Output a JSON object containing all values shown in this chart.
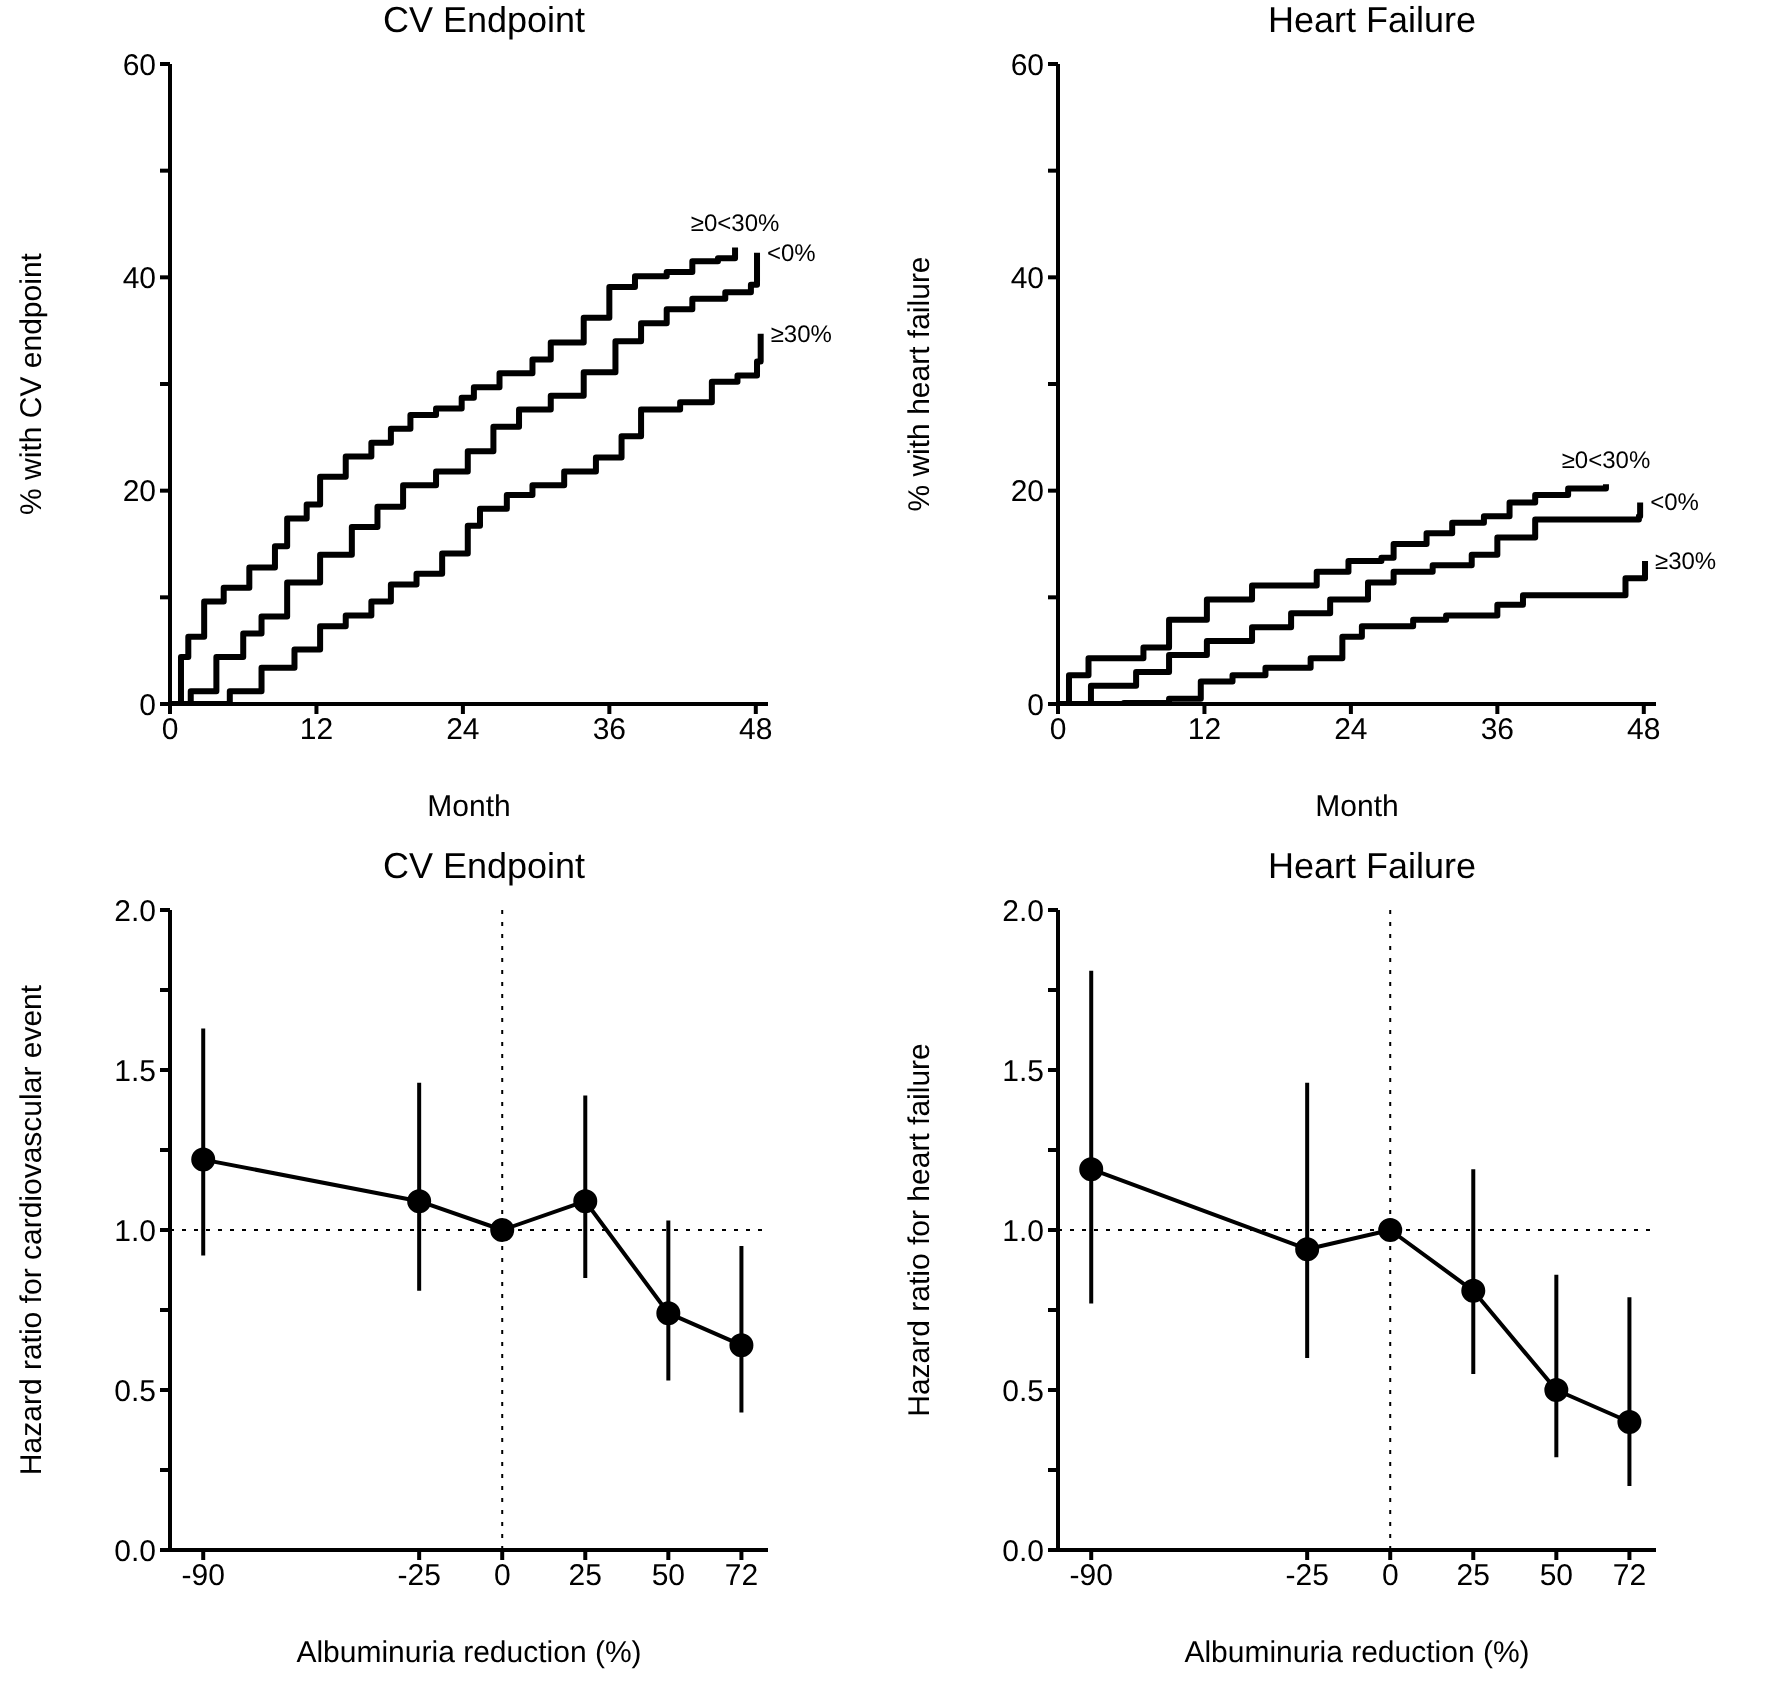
{
  "chart_data": [
    {
      "type": "step",
      "title": "CV Endpoint",
      "xlabel": "Month",
      "ylabel": "% with CV endpoint",
      "xlim": [
        0,
        49
      ],
      "xticks": [
        0,
        12,
        24,
        36,
        48
      ],
      "ylim": [
        0,
        60
      ],
      "yticks": [
        0,
        {
          "value": 10,
          "label": null
        },
        20,
        {
          "value": 30,
          "label": null
        },
        40,
        {
          "value": 50,
          "label": null
        },
        60
      ],
      "marker": "none",
      "line_style": "solid",
      "series": [
        {
          "name": "≥0<30%",
          "color": "#000000",
          "x": [
            0,
            0.9,
            1.5,
            2.8,
            4.4,
            6.5,
            8.6,
            9.6,
            11.2,
            12.3,
            14.4,
            16.5,
            18.1,
            19.7,
            21.8,
            23.9,
            24.9,
            27,
            29.7,
            31.2,
            33.9,
            36,
            38.1,
            40.7,
            42.8,
            44.9,
            46.3
          ],
          "values": [
            0,
            4.4,
            6.3,
            9.6,
            10.9,
            12.8,
            14.8,
            17.4,
            18.7,
            21.3,
            23.2,
            24.5,
            25.8,
            27.1,
            27.7,
            28.7,
            29.7,
            31,
            32.3,
            33.9,
            36.2,
            39.1,
            40.1,
            40.5,
            41.5,
            41.8,
            42.8
          ]
        },
        {
          "name": "<0%",
          "color": "#000000",
          "x": [
            0,
            1.7,
            3.8,
            6,
            7.5,
            9.6,
            12.3,
            14.9,
            17,
            19.1,
            21.8,
            24.4,
            26.5,
            28.6,
            31.2,
            33.9,
            36.5,
            38.6,
            40.7,
            42.8,
            45.5,
            47.6,
            48.1
          ],
          "values": [
            0,
            1.2,
            4.4,
            6.6,
            8.2,
            11.4,
            14,
            16.6,
            18.5,
            20.5,
            21.8,
            23.7,
            26,
            27.6,
            28.9,
            31.1,
            34,
            35.7,
            37,
            38,
            38.6,
            39.3,
            42.3
          ]
        },
        {
          "name": "≥30%",
          "color": "#000000",
          "x": [
            0,
            3.3,
            4.9,
            7.5,
            10.2,
            12.3,
            14.4,
            16.5,
            18.1,
            20.2,
            22.3,
            24.4,
            25.4,
            27.6,
            29.7,
            32.3,
            34.9,
            37,
            38.6,
            41.8,
            44.4,
            46.5,
            48.1,
            48.4
          ],
          "values": [
            0,
            0,
            1.2,
            3.4,
            5.1,
            7.3,
            8.3,
            9.6,
            11.2,
            12.2,
            14.1,
            16.7,
            18.3,
            19.6,
            20.5,
            21.8,
            23.1,
            25.1,
            27.6,
            28.3,
            30.2,
            30.8,
            32.1,
            34.7
          ]
        }
      ]
    },
    {
      "type": "step",
      "title": "Heart Failure",
      "xlabel": "Month",
      "ylabel": "% with heart failure",
      "xlim": [
        0,
        49
      ],
      "xticks": [
        0,
        12,
        24,
        36,
        48
      ],
      "ylim": [
        0,
        60
      ],
      "yticks": [
        0,
        {
          "value": 10,
          "label": null
        },
        20,
        {
          "value": 30,
          "label": null
        },
        40,
        {
          "value": 50,
          "label": null
        },
        60
      ],
      "marker": "none",
      "line_style": "solid",
      "series": [
        {
          "name": "≥0<30%",
          "color": "#000000",
          "x": [
            0,
            0.9,
            2.5,
            4.9,
            7,
            9.1,
            12.2,
            15.9,
            21.2,
            23.8,
            26.5,
            27.5,
            30.2,
            32.3,
            34.9,
            37,
            39.1,
            41.8,
            44.9
          ],
          "values": [
            0,
            2.7,
            4.3,
            4.3,
            5.3,
            7.9,
            9.8,
            11.1,
            12.4,
            13.4,
            13.7,
            15,
            16,
            17,
            17.6,
            18.9,
            19.6,
            20.2,
            20.6
          ]
        },
        {
          "name": "<0%",
          "color": "#000000",
          "x": [
            0,
            2.7,
            6.4,
            9.1,
            12.2,
            15.9,
            19.1,
            22.3,
            25.4,
            27.5,
            30.7,
            33.9,
            36,
            39.1,
            42.3,
            45.5,
            47.6,
            47.7
          ],
          "values": [
            0,
            1.7,
            3,
            4.6,
            5.9,
            7.2,
            8.5,
            9.8,
            11.4,
            12.4,
            13,
            14,
            15.6,
            17.3,
            17.3,
            17.3,
            17.6,
            18.9
          ]
        },
        {
          "name": "≥30%",
          "color": "#000000",
          "x": [
            0,
            5.4,
            9.1,
            11.7,
            14.3,
            17,
            20.7,
            23.3,
            24.9,
            29.1,
            31.8,
            36,
            38.1,
            45.5,
            46.5,
            48.1
          ],
          "values": [
            0,
            0.1,
            0.5,
            2.1,
            2.7,
            3.4,
            4.3,
            6.3,
            7.3,
            7.9,
            8.3,
            9.3,
            10.2,
            10.2,
            11.8,
            13.4
          ]
        }
      ]
    },
    {
      "type": "line",
      "title": "CV Endpoint",
      "xlabel": "Albuminuria reduction (%)",
      "ylabel": "Hazard ratio for cardiovascular event",
      "xlim": [
        -100,
        80
      ],
      "xticks": [
        -90,
        -25,
        0,
        25,
        50,
        72
      ],
      "ylim": [
        0,
        2
      ],
      "yticks": [
        {
          "value": 0,
          "label": "0.0"
        },
        {
          "value": 0.25,
          "label": null
        },
        0.5,
        {
          "value": 0.75,
          "label": null
        },
        {
          "value": 1,
          "label": "1.0"
        },
        {
          "value": 1.25,
          "label": null
        },
        1.5,
        {
          "value": 1.75,
          "label": null
        },
        {
          "value": 2,
          "label": "2.0"
        }
      ],
      "marker": "circle",
      "line_style": "solid",
      "color": "#000000",
      "x": [
        -90,
        -25,
        0,
        25,
        50,
        72
      ],
      "values": [
        1.22,
        1.09,
        1.0,
        1.09,
        0.74,
        0.64
      ],
      "errors": [
        [
          0.92,
          1.63
        ],
        [
          0.81,
          1.46
        ],
        null,
        [
          0.85,
          1.42
        ],
        [
          0.53,
          1.03
        ],
        [
          0.43,
          0.95
        ]
      ],
      "ref_lines": [
        {
          "axis": "x",
          "value": 0,
          "line_style": "dotted",
          "color": "#000000"
        },
        {
          "axis": "y",
          "value": 1,
          "line_style": "dotted",
          "color": "#000000"
        }
      ]
    },
    {
      "type": "line",
      "title": "Heart Failure",
      "xlabel": "Albuminuria reduction (%)",
      "ylabel": "Hazard ratio for heart failure",
      "xlim": [
        -100,
        80
      ],
      "xticks": [
        -90,
        -25,
        0,
        25,
        50,
        72
      ],
      "ylim": [
        0,
        2
      ],
      "yticks": [
        {
          "value": 0,
          "label": "0.0"
        },
        {
          "value": 0.25,
          "label": null
        },
        0.5,
        {
          "value": 0.75,
          "label": null
        },
        {
          "value": 1,
          "label": "1.0"
        },
        {
          "value": 1.25,
          "label": null
        },
        1.5,
        {
          "value": 1.75,
          "label": null
        },
        {
          "value": 2,
          "label": "2.0"
        }
      ],
      "marker": "circle",
      "line_style": "solid",
      "color": "#000000",
      "x": [
        -90,
        -25,
        0,
        25,
        50,
        72
      ],
      "values": [
        1.19,
        0.94,
        1.0,
        0.81,
        0.5,
        0.4
      ],
      "errors": [
        [
          0.77,
          1.81
        ],
        [
          0.6,
          1.46
        ],
        null,
        [
          0.55,
          1.19
        ],
        [
          0.29,
          0.86
        ],
        [
          0.2,
          0.79
        ]
      ],
      "ref_lines": [
        {
          "axis": "x",
          "value": 0,
          "line_style": "dotted",
          "color": "#000000"
        },
        {
          "axis": "y",
          "value": 1,
          "line_style": "dotted",
          "color": "#000000"
        }
      ]
    }
  ]
}
